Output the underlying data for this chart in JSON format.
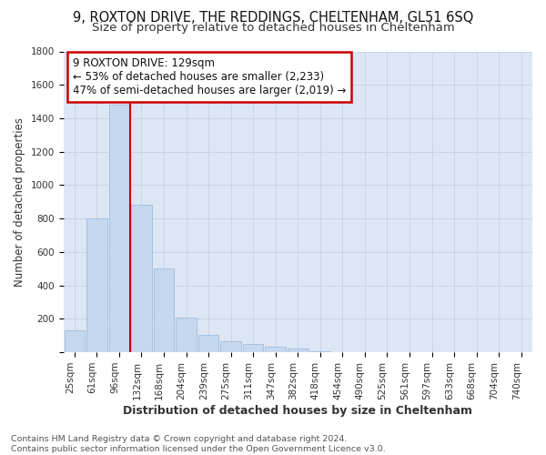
{
  "title": "9, ROXTON DRIVE, THE REDDINGS, CHELTENHAM, GL51 6SQ",
  "subtitle": "Size of property relative to detached houses in Cheltenham",
  "xlabel": "Distribution of detached houses by size in Cheltenham",
  "ylabel": "Number of detached properties",
  "categories": [
    "25sqm",
    "61sqm",
    "96sqm",
    "132sqm",
    "168sqm",
    "204sqm",
    "239sqm",
    "275sqm",
    "311sqm",
    "347sqm",
    "382sqm",
    "418sqm",
    "454sqm",
    "490sqm",
    "525sqm",
    "561sqm",
    "597sqm",
    "633sqm",
    "668sqm",
    "704sqm",
    "740sqm"
  ],
  "values": [
    130,
    800,
    1480,
    880,
    500,
    205,
    105,
    65,
    48,
    35,
    20,
    5,
    2,
    1,
    0,
    0,
    0,
    0,
    0,
    0,
    0
  ],
  "bar_color": "#c5d8f0",
  "bar_edge_color": "#a0bcd8",
  "vline_x": 3,
  "vline_color": "#cc0000",
  "annotation_text": "9 ROXTON DRIVE: 129sqm\n← 53% of detached houses are smaller (2,233)\n47% of semi-detached houses are larger (2,019) →",
  "annotation_box_facecolor": "#ffffff",
  "annotation_box_edgecolor": "#cc0000",
  "ylim": [
    0,
    1800
  ],
  "yticks": [
    0,
    200,
    400,
    600,
    800,
    1000,
    1200,
    1400,
    1600,
    1800
  ],
  "grid_color": "#c8d4e8",
  "background_color": "#dde6f5",
  "footer_text": "Contains HM Land Registry data © Crown copyright and database right 2024.\nContains public sector information licensed under the Open Government Licence v3.0.",
  "title_fontsize": 10.5,
  "subtitle_fontsize": 9.5,
  "xlabel_fontsize": 9,
  "ylabel_fontsize": 8.5,
  "tick_fontsize": 7.5,
  "annotation_fontsize": 8.5,
  "footer_fontsize": 6.8
}
